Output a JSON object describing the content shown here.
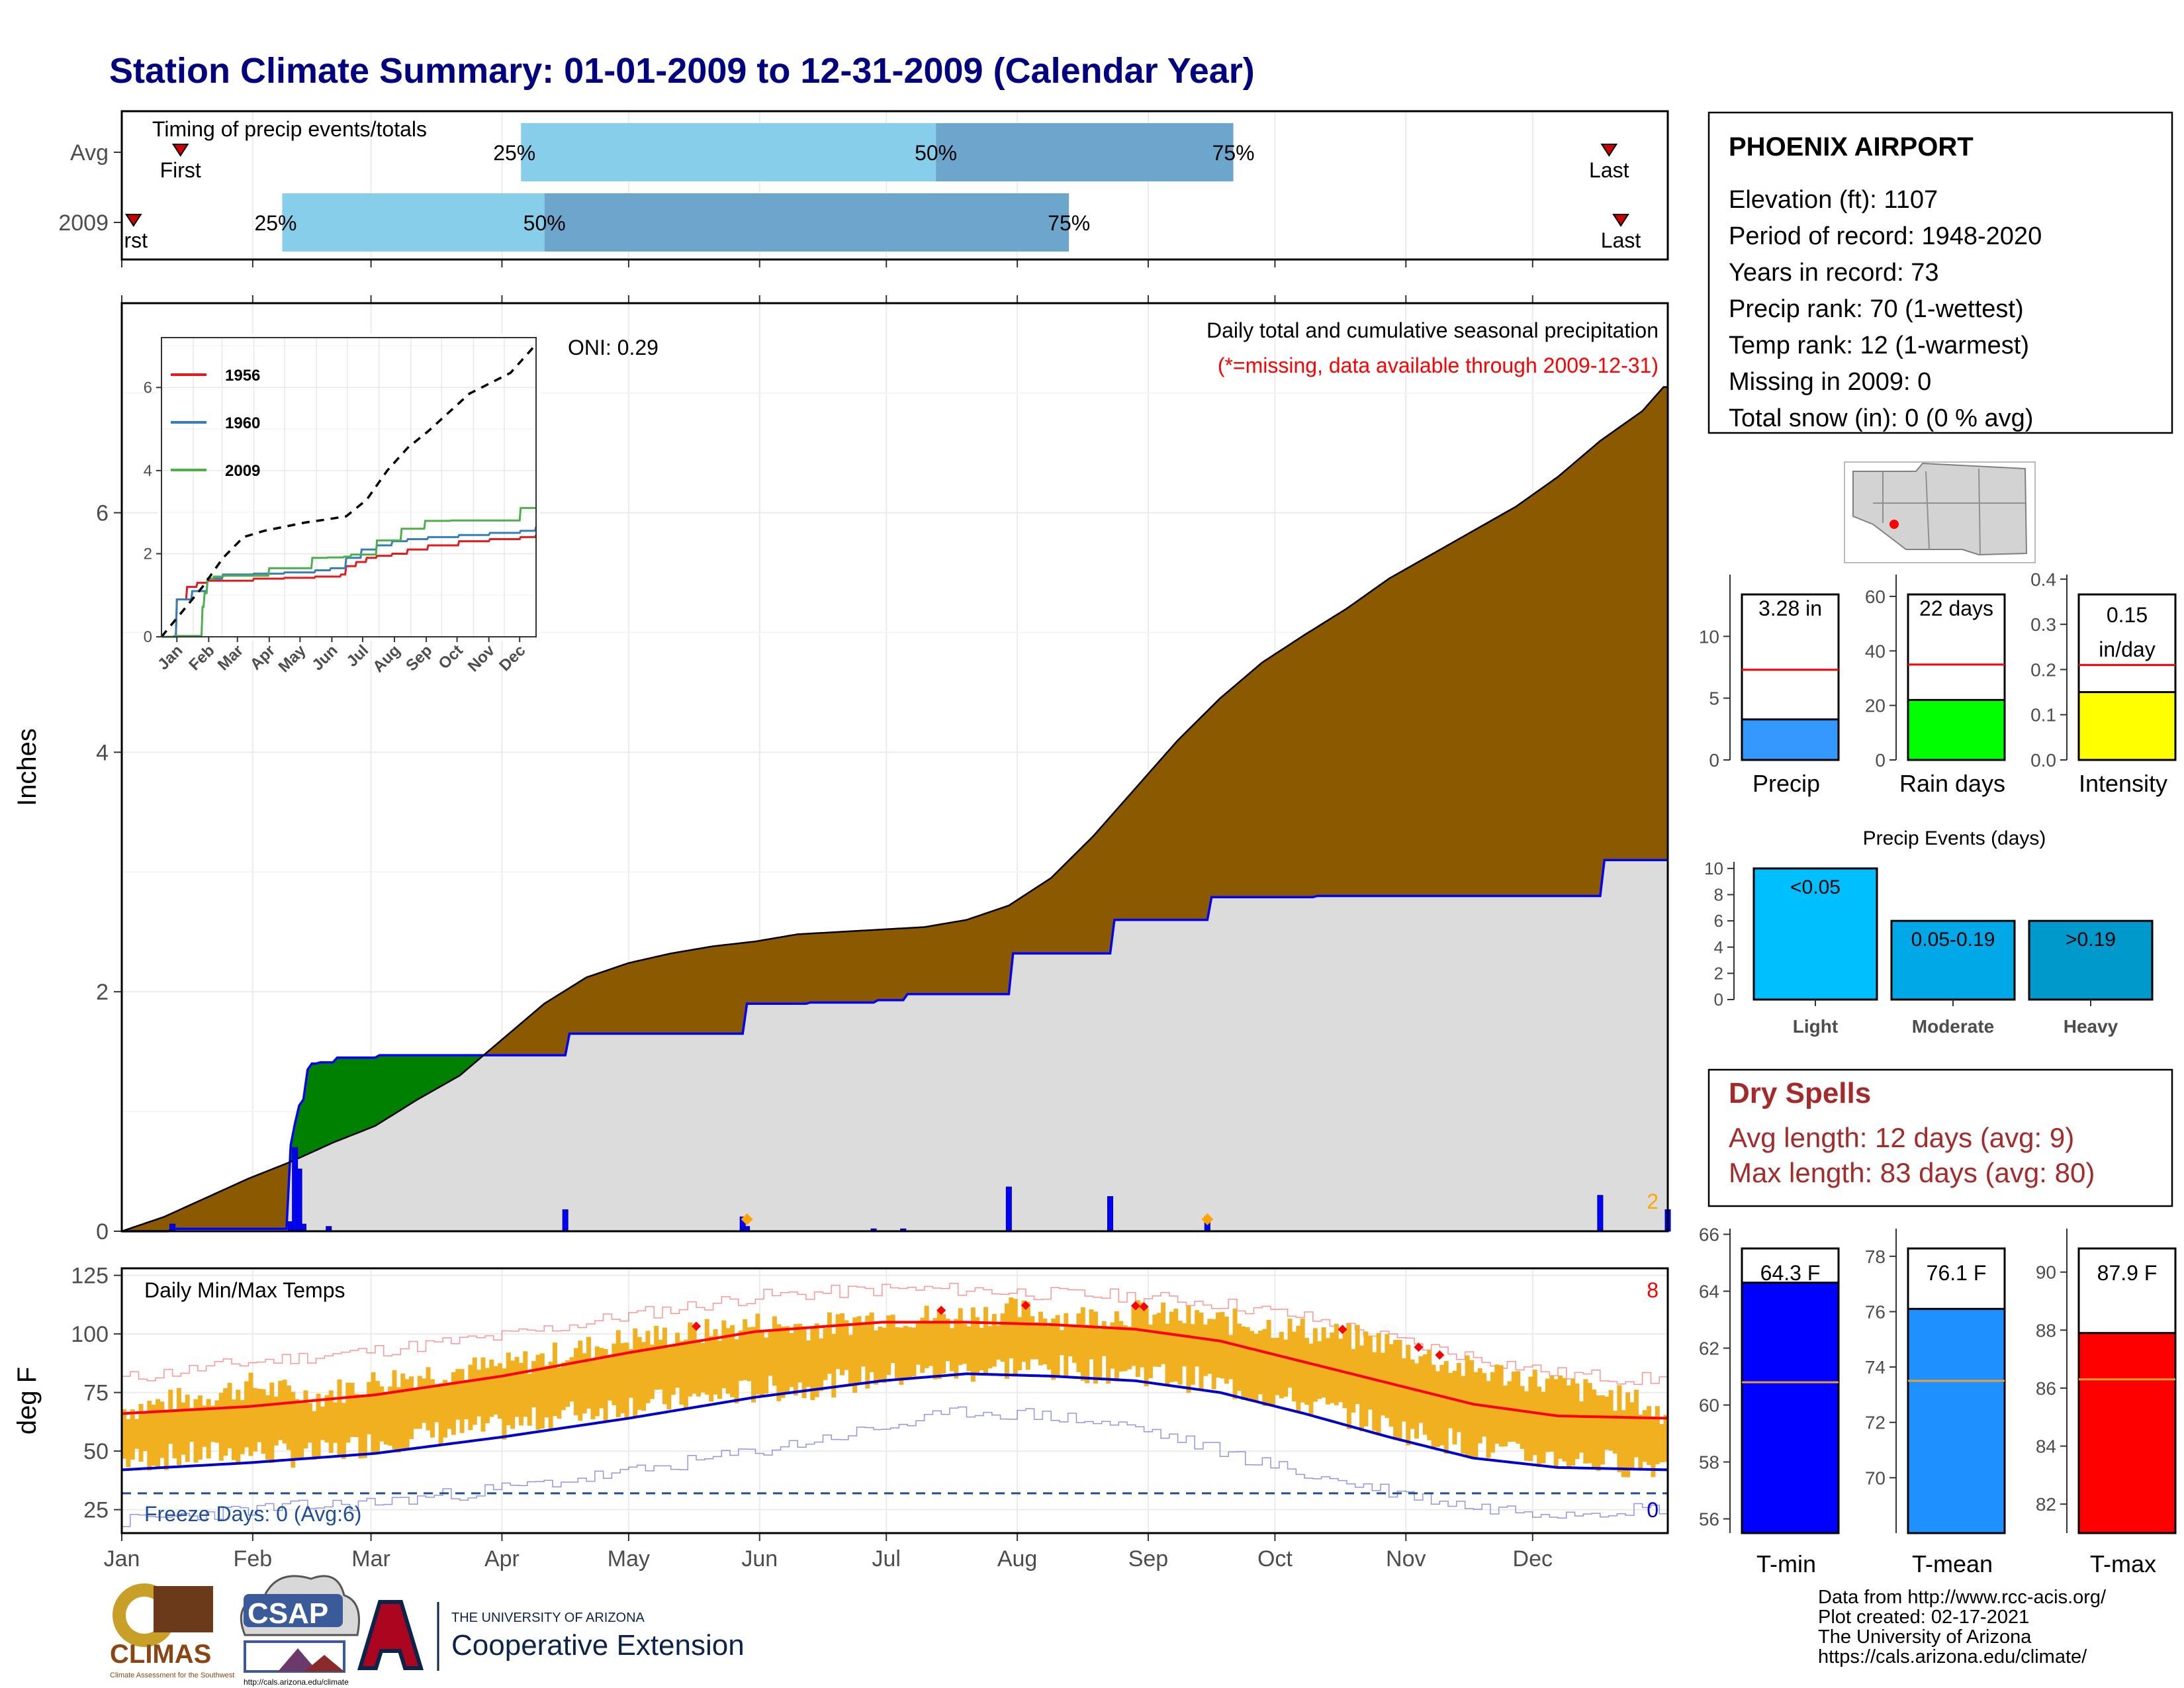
{
  "title": "Station Climate Summary: 01-01-2009 to 12-31-2009 (Calendar Year)",
  "months": [
    "Jan",
    "Feb",
    "Mar",
    "Apr",
    "May",
    "Jun",
    "Jul",
    "Aug",
    "Sep",
    "Oct",
    "Nov",
    "Dec"
  ],
  "colors": {
    "cum_2009": "#8B5A00",
    "normal_fill": "#DCDCDC",
    "above_fill": "#008000",
    "daily_bar": "#0000FF",
    "temp_band": "#F0B020",
    "tmax_normal": "#FF0000",
    "tmin_normal": "#0000CD"
  },
  "chart_data": [
    {
      "id": "timing",
      "type": "bar",
      "title": "Timing of precip events/totals",
      "categories": [
        "Avg",
        "2009"
      ],
      "series": [
        {
          "name": "Avg",
          "first_day": 15,
          "p25_day": 102,
          "p50_day": 208,
          "p75_day": 284,
          "last_day": 380
        },
        {
          "name": "2009",
          "first_day": 3,
          "p25_day": 41,
          "p50_day": 108,
          "p75_day": 242,
          "last_day": 383
        }
      ],
      "labels": {
        "first": "First",
        "first_2009": "irst",
        "last": "Last",
        "p25": "25%",
        "p50": "50%",
        "p75": "75%"
      },
      "xlim": [
        0,
        395
      ]
    },
    {
      "id": "precip",
      "type": "area",
      "title": "Daily total and cumulative seasonal precipitation",
      "subtitle": "(*=missing, data available through 2009-12-31)",
      "ylabel": "Inches",
      "ylim": [
        0,
        7.75
      ],
      "yticks": [
        0,
        2,
        4,
        6
      ],
      "oni_label": "ONI: 0.29",
      "corner_count": "2",
      "normal_cumulative": {
        "x": [
          0,
          10,
          20,
          30,
          40,
          50,
          60,
          70,
          80,
          90,
          100,
          110,
          120,
          130,
          140,
          150,
          160,
          170,
          180,
          190,
          200,
          210,
          220,
          230,
          240,
          250,
          260,
          270,
          280,
          290,
          300,
          310,
          320,
          330,
          340,
          350,
          360,
          365
        ],
        "values": [
          0,
          0.12,
          0.28,
          0.44,
          0.58,
          0.74,
          0.88,
          1.1,
          1.3,
          1.6,
          1.9,
          2.12,
          2.24,
          2.32,
          2.38,
          2.42,
          2.48,
          2.5,
          2.52,
          2.54,
          2.6,
          2.72,
          2.95,
          3.3,
          3.7,
          4.1,
          4.45,
          4.75,
          4.98,
          5.2,
          5.45,
          5.65,
          5.85,
          6.05,
          6.3,
          6.6,
          6.85,
          7.05
        ]
      },
      "cumulative_2009": {
        "x": [
          0,
          12,
          20,
          39,
          40,
          41,
          42,
          43,
          44,
          45,
          47,
          50,
          51,
          60,
          61,
          105,
          106,
          147,
          148,
          162,
          163,
          178,
          179,
          185,
          186,
          210,
          211,
          234,
          235,
          257,
          258,
          282,
          283,
          350,
          351,
          366,
          367,
          370
        ],
        "values": [
          0,
          0.02,
          0.02,
          0.02,
          0.72,
          0.9,
          1.05,
          1.1,
          1.35,
          1.4,
          1.41,
          1.41,
          1.45,
          1.45,
          1.47,
          1.47,
          1.65,
          1.65,
          1.9,
          1.9,
          1.91,
          1.91,
          1.93,
          1.93,
          1.98,
          1.98,
          2.32,
          2.32,
          2.6,
          2.6,
          2.79,
          2.79,
          2.8,
          2.8,
          3.1,
          3.1,
          3.28,
          3.28
        ]
      },
      "daily": {
        "x": [
          12,
          40,
          41,
          42,
          43,
          49,
          105,
          147,
          148,
          178,
          185,
          210,
          234,
          257,
          350,
          366
        ],
        "values": [
          0.06,
          0.08,
          0.7,
          0.52,
          0.06,
          0.04,
          0.18,
          0.12,
          0.04,
          0.02,
          0.02,
          0.37,
          0.29,
          0.11,
          0.3,
          0.18
        ]
      },
      "missing_markers_x": [
        148,
        257
      ]
    },
    {
      "id": "oni_inset",
      "type": "line",
      "categories": [
        "Jan",
        "Feb",
        "Mar",
        "Apr",
        "May",
        "Jun",
        "Jul",
        "Aug",
        "Sep",
        "Oct",
        "Nov",
        "Dec"
      ],
      "ylim": [
        0,
        7.2
      ],
      "yticks": [
        0,
        2,
        4,
        6
      ],
      "series": [
        {
          "name": "1956",
          "color": "#E41A1C",
          "x": [
            0,
            15,
            25,
            35,
            45,
            60,
            90,
            120,
            150,
            165,
            175,
            180,
            190,
            200,
            210,
            225,
            240,
            260,
            290,
            320,
            350,
            365
          ],
          "values": [
            0,
            0.9,
            1.2,
            1.3,
            1.35,
            1.35,
            1.4,
            1.42,
            1.45,
            1.45,
            1.5,
            1.7,
            1.8,
            1.9,
            1.95,
            2.0,
            2.1,
            2.2,
            2.3,
            2.35,
            2.4,
            2.45
          ]
        },
        {
          "name": "1960",
          "color": "#377EB8",
          "x": [
            0,
            15,
            30,
            45,
            60,
            90,
            120,
            150,
            165,
            180,
            195,
            210,
            225,
            240,
            260,
            290,
            320,
            350,
            365
          ],
          "values": [
            0,
            0.9,
            1.1,
            1.4,
            1.5,
            1.52,
            1.55,
            1.6,
            1.65,
            1.9,
            2.1,
            2.2,
            2.3,
            2.35,
            2.4,
            2.45,
            2.5,
            2.55,
            2.65
          ]
        },
        {
          "name": "2009",
          "color": "#4DAF4A",
          "x": [
            0,
            12,
            39,
            40,
            42,
            45,
            51,
            61,
            105,
            147,
            162,
            178,
            185,
            210,
            234,
            257,
            282,
            350,
            366
          ],
          "values": [
            0,
            0.02,
            0.02,
            0.72,
            1.05,
            1.4,
            1.45,
            1.47,
            1.65,
            1.9,
            1.91,
            1.93,
            1.98,
            2.32,
            2.6,
            2.79,
            2.8,
            3.1,
            3.28
          ]
        },
        {
          "name": "",
          "color": "#000000",
          "dashed": true,
          "x": [
            0,
            20,
            40,
            60,
            80,
            100,
            120,
            140,
            160,
            180,
            200,
            220,
            240,
            260,
            280,
            300,
            320,
            340,
            360,
            365
          ],
          "values": [
            0,
            0.6,
            1.2,
            1.9,
            2.4,
            2.55,
            2.65,
            2.75,
            2.82,
            2.9,
            3.3,
            4.0,
            4.55,
            4.95,
            5.4,
            5.85,
            6.1,
            6.35,
            6.9,
            7.05
          ]
        }
      ]
    },
    {
      "id": "temps",
      "type": "line",
      "title": "Daily Min/Max Temps",
      "ylabel": "deg F",
      "ylim": [
        15,
        128
      ],
      "yticks": [
        25,
        50,
        75,
        100,
        125
      ],
      "freeze_line": 32,
      "freeze_label": "Freeze Days: 0 (Avg:6)",
      "count_top": "8",
      "count_bottom": "0",
      "normal_max": {
        "x": [
          0,
          30,
          60,
          90,
          120,
          150,
          180,
          200,
          220,
          240,
          260,
          280,
          300,
          320,
          340,
          366
        ],
        "values": [
          66,
          69,
          74,
          82,
          92,
          101,
          105,
          105,
          104,
          102,
          97,
          88,
          79,
          70,
          65,
          64
        ]
      },
      "normal_min": {
        "x": [
          0,
          30,
          60,
          90,
          120,
          150,
          180,
          200,
          220,
          240,
          260,
          280,
          300,
          320,
          340,
          366
        ],
        "values": [
          42,
          45,
          49,
          56,
          64,
          73,
          80,
          83,
          82,
          80,
          75,
          66,
          56,
          47,
          43,
          42
        ]
      },
      "record_max": {
        "x": [
          0,
          30,
          60,
          90,
          120,
          150,
          180,
          200,
          220,
          240,
          260,
          280,
          300,
          320,
          340,
          366
        ],
        "values": [
          81,
          88,
          93,
          99,
          108,
          116,
          119,
          119,
          117,
          116,
          113,
          107,
          98,
          90,
          83,
          80
        ]
      },
      "record_min": {
        "x": [
          0,
          30,
          60,
          90,
          120,
          150,
          180,
          200,
          220,
          240,
          260,
          280,
          300,
          320,
          340,
          366
        ],
        "values": [
          20,
          25,
          28,
          34,
          41,
          50,
          60,
          67,
          65,
          60,
          50,
          40,
          33,
          26,
          24,
          26
        ]
      },
      "obs_max": {
        "x": [
          0,
          15,
          30,
          45,
          60,
          75,
          90,
          105,
          120,
          135,
          150,
          165,
          180,
          195,
          210,
          225,
          240,
          255,
          270,
          285,
          300,
          315,
          330,
          345,
          360,
          366
        ],
        "values": [
          68,
          72,
          78,
          73,
          80,
          84,
          86,
          92,
          98,
          100,
          104,
          103,
          108,
          107,
          110,
          107,
          109,
          106,
          104,
          100,
          96,
          86,
          82,
          76,
          70,
          62
        ]
      },
      "obs_min": {
        "x": [
          0,
          15,
          30,
          45,
          60,
          75,
          90,
          105,
          120,
          135,
          150,
          165,
          180,
          195,
          210,
          225,
          240,
          255,
          270,
          285,
          300,
          315,
          330,
          345,
          360,
          366
        ],
        "values": [
          46,
          48,
          50,
          48,
          54,
          58,
          60,
          66,
          70,
          72,
          76,
          78,
          82,
          84,
          86,
          85,
          84,
          80,
          74,
          68,
          60,
          54,
          48,
          46,
          44,
          45
        ]
      },
      "record_marker_x": [
        136,
        194,
        214,
        240,
        242,
        289,
        307,
        312
      ]
    },
    {
      "id": "precip_gauge",
      "type": "bar",
      "label": "Precip",
      "value": 3.28,
      "value_label": "3.28 in",
      "normal": 7.3,
      "ylim": [
        0,
        15
      ],
      "yticks": [
        0,
        5,
        10
      ],
      "color": "#3399FF"
    },
    {
      "id": "raindays_gauge",
      "type": "bar",
      "label": "Rain days",
      "value": 22,
      "value_label": "22 days",
      "normal": 35,
      "ylim": [
        0,
        68
      ],
      "yticks": [
        0,
        20,
        40,
        60
      ],
      "color": "#00FF00"
    },
    {
      "id": "intensity_gauge",
      "type": "bar",
      "label": "Intensity",
      "value": 0.15,
      "value_label": "0.15",
      "value_label_unit": "in/day",
      "normal": 0.21,
      "ylim": [
        0,
        0.41
      ],
      "yticks": [
        0.0,
        0.1,
        0.2,
        0.3,
        0.4
      ],
      "color": "#FFFF00"
    },
    {
      "id": "precip_events",
      "type": "bar",
      "title": "Precip Events (days)",
      "categories": [
        "Light",
        "Moderate",
        "Heavy"
      ],
      "values": [
        10,
        6,
        6
      ],
      "bar_labels": [
        "<0.05",
        "0.05-0.19",
        ">0.19"
      ],
      "colors": [
        "#00BFFF",
        "#00A8E8",
        "#0099CC"
      ],
      "ylim": [
        0,
        10.5
      ],
      "yticks": [
        0,
        2,
        4,
        6,
        8,
        10
      ]
    },
    {
      "id": "tmin_gauge",
      "type": "bar",
      "label": "T-min",
      "value": 64.3,
      "value_label": "64.3 F",
      "normal": 60.8,
      "ylim": [
        55.5,
        66.2
      ],
      "yticks": [
        56,
        58,
        60,
        62,
        64,
        66
      ],
      "color": "#0000FF"
    },
    {
      "id": "tmean_gauge",
      "type": "bar",
      "label": "T-mean",
      "value": 76.1,
      "value_label": "76.1 F",
      "normal": 73.5,
      "ylim": [
        68,
        79
      ],
      "yticks": [
        70,
        72,
        74,
        76,
        78
      ],
      "color": "#1E90FF"
    },
    {
      "id": "tmax_gauge",
      "type": "bar",
      "label": "T-max",
      "value": 87.9,
      "value_label": "87.9 F",
      "normal": 86.3,
      "ylim": [
        81,
        91.5
      ],
      "yticks": [
        82,
        84,
        86,
        88,
        90
      ],
      "color": "#FF0000"
    }
  ],
  "station": {
    "name": "PHOENIX AIRPORT",
    "lines": [
      "Elevation (ft): 1107",
      "Period of record: 1948-2020",
      "Years in record: 73",
      "Precip rank: 70 (1-wettest)",
      "Temp rank: 12 (1-warmest)",
      "Missing in 2009: 0",
      "Total snow (in): 0 (0 % avg)"
    ]
  },
  "dry_spells": {
    "title": "Dry Spells",
    "avg": "Avg length: 12 days (avg: 9)",
    "max": "Max length: 83 days (avg: 80)"
  },
  "footer": {
    "lines": [
      "Data from http://www.rcc-acis.org/",
      "Plot created: 02-17-2021",
      "The University of Arizona",
      "https://cals.arizona.edu/climate/"
    ],
    "logos": {
      "climas": "CLIMAS",
      "climas_sub": "Climate Assessment for the Southwest",
      "csap": "CSAP",
      "csap_url": "http://cals.arizona.edu/climate",
      "ua_small": "THE UNIVERSITY OF ARIZONA",
      "ua_large": "Cooperative Extension",
      "ua_letter": "A"
    }
  }
}
